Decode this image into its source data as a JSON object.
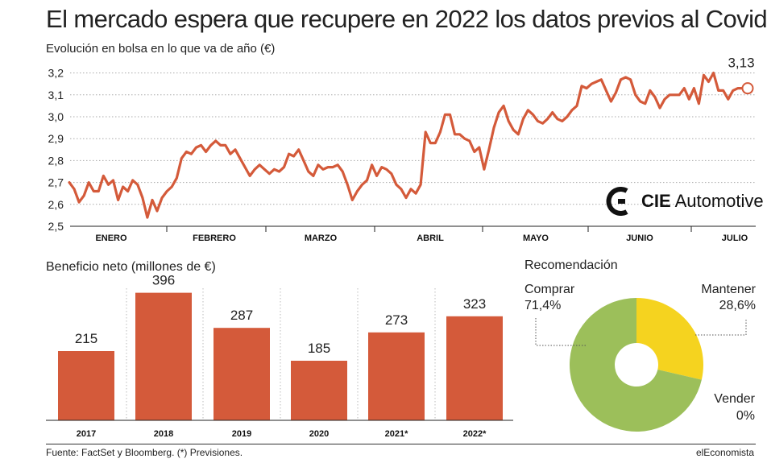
{
  "header": {
    "title": "El mercado espera que recupere en 2022 los datos previos al Covid",
    "subtitle": "Evolución en bolsa en lo que va de año (€)"
  },
  "logo": {
    "brand_bold": "CIE",
    "brand_rest": "Automotive"
  },
  "line_chart": {
    "last_value_label": "3,13"
  },
  "bar_section": {
    "title": "Beneficio neto (millones de €)"
  },
  "donut_section": {
    "title": "Recomendación",
    "labels": [
      {
        "name": "Comprar",
        "value": "71,4%"
      },
      {
        "name": "Mantener",
        "value": "28,6%"
      },
      {
        "name": "Vender",
        "value": "0%"
      }
    ]
  },
  "footer": {
    "source": "Fuente: FactSet y Bloomberg. (*) Previsiones.",
    "brand": "elEconomista"
  },
  "colors": {
    "line": "#d45a3a",
    "bar": "#d45a3a",
    "comprar": "#9cbf5a",
    "mantener": "#f5d31f",
    "grid": "#aaaaaa"
  },
  "chart_data": [
    {
      "type": "line",
      "title": "Evolución en bolsa en lo que va de año (€)",
      "xlabel": "",
      "ylabel": "",
      "x_tick_labels": [
        "ENERO",
        "FEBRERO",
        "MARZO",
        "ABRIL",
        "MAYO",
        "JUNIO",
        "JULIO"
      ],
      "y_ticks": [
        2.5,
        2.6,
        2.7,
        2.8,
        2.9,
        3.0,
        3.1,
        3.2
      ],
      "y_tick_labels": [
        "2,5",
        "2,6",
        "2,7",
        "2,8",
        "2,9",
        "3,0",
        "3,1",
        "3,2"
      ],
      "ylim": [
        2.5,
        3.25
      ],
      "grid": "horizontal dotted",
      "series": [
        {
          "values": [
            2.7,
            2.67,
            2.61,
            2.64,
            2.7,
            2.66,
            2.66,
            2.73,
            2.69,
            2.71,
            2.62,
            2.68,
            2.66,
            2.71,
            2.69,
            2.63,
            2.54,
            2.62,
            2.57,
            2.63,
            2.66,
            2.68,
            2.72,
            2.81,
            2.84,
            2.83,
            2.86,
            2.87,
            2.84,
            2.87,
            2.89,
            2.87,
            2.87,
            2.83,
            2.85,
            2.81,
            2.77,
            2.73,
            2.76,
            2.78,
            2.76,
            2.74,
            2.76,
            2.75,
            2.77,
            2.83,
            2.82,
            2.85,
            2.8,
            2.75,
            2.73,
            2.78,
            2.76,
            2.77,
            2.77,
            2.78,
            2.75,
            2.69,
            2.62,
            2.66,
            2.69,
            2.71,
            2.78,
            2.73,
            2.77,
            2.76,
            2.74,
            2.69,
            2.67,
            2.63,
            2.67,
            2.65,
            2.69,
            2.93,
            2.88,
            2.88,
            2.93,
            3.01,
            3.01,
            2.92,
            2.92,
            2.9,
            2.89,
            2.84,
            2.86,
            2.76,
            2.85,
            2.95,
            3.02,
            3.05,
            2.98,
            2.94,
            2.92,
            2.99,
            3.03,
            3.01,
            2.98,
            2.97,
            2.99,
            3.02,
            2.99,
            2.98,
            3.0,
            3.03,
            3.05,
            3.14,
            3.13,
            3.15,
            3.16,
            3.17,
            3.12,
            3.07,
            3.11,
            3.17,
            3.18,
            3.17,
            3.1,
            3.07,
            3.06,
            3.12,
            3.09,
            3.04,
            3.08,
            3.1,
            3.1,
            3.1,
            3.13,
            3.08,
            3.13,
            3.06,
            3.19,
            3.16,
            3.2,
            3.12,
            3.12,
            3.08,
            3.12,
            3.13,
            3.13,
            3.13
          ]
        }
      ],
      "annotations": [
        "3,13"
      ]
    },
    {
      "type": "bar",
      "title": "Beneficio neto (millones de €)",
      "categories": [
        "2017",
        "2018",
        "2019",
        "2020",
        "2021*",
        "2022*"
      ],
      "values": [
        215,
        396,
        287,
        185,
        273,
        323
      ],
      "value_labels": [
        "215",
        "396",
        "287",
        "185",
        "273",
        "323"
      ],
      "ylim": [
        0,
        440
      ]
    },
    {
      "type": "pie",
      "title": "Recomendación",
      "categories": [
        "Comprar",
        "Mantener",
        "Vender"
      ],
      "values": [
        71.4,
        28.6,
        0
      ],
      "value_labels": [
        "71,4%",
        "28,6%",
        "0%"
      ],
      "donut": true
    }
  ]
}
